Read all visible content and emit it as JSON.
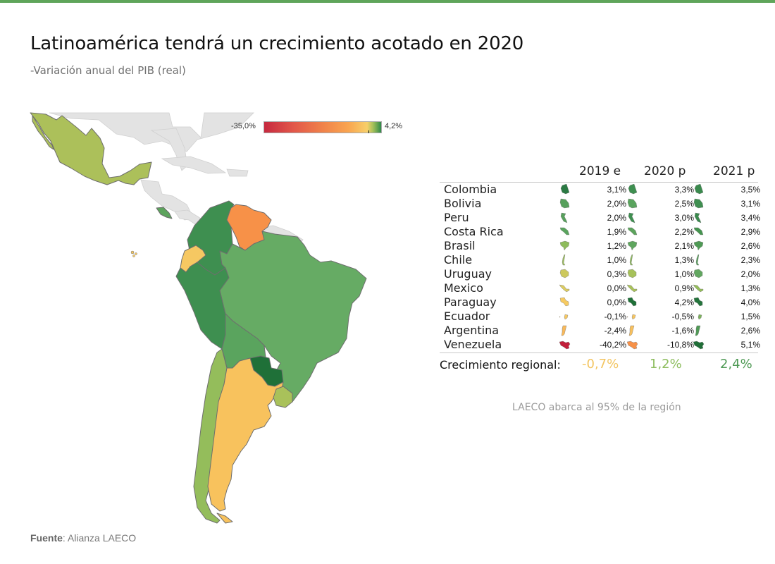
{
  "header": {
    "title": "Latinoamérica tendrá un crecimiento acotado en 2020",
    "subtitle": "-Variación anual del PIB (real)"
  },
  "legend": {
    "min_label": "-35,0%",
    "max_label": "4,2%"
  },
  "table": {
    "columns": [
      "2019 e",
      "2020 p",
      "2021 p"
    ],
    "rows": [
      {
        "country": "Colombia",
        "values": [
          "3,1%",
          "3,3%",
          "3,5%"
        ],
        "colors": [
          "#2b7a43",
          "#3e8f50",
          "#3a8a4d"
        ]
      },
      {
        "country": "Bolivia",
        "values": [
          "2,0%",
          "2,5%",
          "3,1%"
        ],
        "colors": [
          "#57a05c",
          "#5aa45e",
          "#3f8f51"
        ]
      },
      {
        "country": "Peru",
        "values": [
          "2,0%",
          "3,0%",
          "3,4%"
        ],
        "colors": [
          "#57a05c",
          "#3e8f50",
          "#3a8a4d"
        ]
      },
      {
        "country": "Costa Rica",
        "values": [
          "1,9%",
          "2,2%",
          "2,9%"
        ],
        "colors": [
          "#5aa45e",
          "#5ca35c",
          "#45944f"
        ]
      },
      {
        "country": "Brasil",
        "values": [
          "1,2%",
          "2,1%",
          "2,6%"
        ],
        "colors": [
          "#8ebc5c",
          "#5fa65e",
          "#4f9a55"
        ]
      },
      {
        "country": "Chile",
        "values": [
          "1,0%",
          "1,3%",
          "2,3%"
        ],
        "colors": [
          "#9cc05a",
          "#8ebc5c",
          "#55a05a"
        ]
      },
      {
        "country": "Uruguay",
        "values": [
          "0,3%",
          "1,0%",
          "2,0%"
        ],
        "colors": [
          "#cdc95d",
          "#a6c15a",
          "#61a660"
        ]
      },
      {
        "country": "Mexico",
        "values": [
          "0,0%",
          "0,9%",
          "1,3%"
        ],
        "colors": [
          "#dccc62",
          "#a9c15a",
          "#94bd5b"
        ]
      },
      {
        "country": "Paraguay",
        "values": [
          "0,0%",
          "4,2%",
          "4,0%"
        ],
        "colors": [
          "#f6ca61",
          "#1f7038",
          "#24743c"
        ]
      },
      {
        "country": "Ecuador",
        "values": [
          "-0,1%",
          "-0,5%",
          "1,5%"
        ],
        "colors": [
          "#f6c862",
          "#f6c560",
          "#7cb25c"
        ]
      },
      {
        "country": "Argentina",
        "values": [
          "-2,4%",
          "-1,6%",
          "2,6%"
        ],
        "colors": [
          "#f9b95a",
          "#f8c05d",
          "#4f9a55"
        ]
      },
      {
        "country": "Venezuela",
        "values": [
          "-40,2%",
          "-10,8%",
          "5,1%"
        ],
        "colors": [
          "#c21f3a",
          "#f79148",
          "#1f6e37"
        ]
      }
    ]
  },
  "regional": {
    "label": "Crecimiento regional:",
    "values": [
      "-0,7%",
      "1,2%",
      "2,4%"
    ],
    "colors": [
      "#f3c562",
      "#8dbd5e",
      "#4f9a55"
    ]
  },
  "note": "LAECO abarca al 95% de la región",
  "source": {
    "label": "Fuente",
    "text": ": Alianza LAECO"
  },
  "map": {
    "countries": [
      {
        "name": "Mexico",
        "color": "#acc05a"
      },
      {
        "name": "Costa Rica",
        "color": "#5ca35c"
      },
      {
        "name": "Colombia",
        "color": "#3e8f50"
      },
      {
        "name": "Venezuela",
        "color": "#f79148"
      },
      {
        "name": "Ecuador",
        "color": "#f6c862"
      },
      {
        "name": "Peru",
        "color": "#3e8f50"
      },
      {
        "name": "Brasil",
        "color": "#66ab64"
      },
      {
        "name": "Bolivia",
        "color": "#5aa45e"
      },
      {
        "name": "Paraguay",
        "color": "#1f7038"
      },
      {
        "name": "Chile",
        "color": "#94bd5b"
      },
      {
        "name": "Argentina",
        "color": "#f8c25d"
      },
      {
        "name": "Uruguay",
        "color": "#a9c15a"
      }
    ],
    "other_land_color": "#e3e3e3"
  },
  "chart_data": {
    "type": "table",
    "title": "Latinoamérica tendrá un crecimiento acotado en 2020",
    "subtitle": "-Variación anual del PIB (real)",
    "color_scale": {
      "min": -35.0,
      "max": 4.2,
      "palette": "red-orange-yellow-green"
    },
    "categories": [
      "Colombia",
      "Bolivia",
      "Peru",
      "Costa Rica",
      "Brasil",
      "Chile",
      "Uruguay",
      "Mexico",
      "Paraguay",
      "Ecuador",
      "Argentina",
      "Venezuela"
    ],
    "series": [
      {
        "name": "2019 e",
        "values": [
          3.1,
          2.0,
          2.0,
          1.9,
          1.2,
          1.0,
          0.3,
          0.0,
          0.0,
          -0.1,
          -2.4,
          -40.2
        ]
      },
      {
        "name": "2020 p",
        "values": [
          3.3,
          2.5,
          3.0,
          2.2,
          2.1,
          1.3,
          1.0,
          0.9,
          4.2,
          -0.5,
          -1.6,
          -10.8
        ]
      },
      {
        "name": "2021 p",
        "values": [
          3.5,
          3.1,
          3.4,
          2.9,
          2.6,
          2.3,
          2.0,
          1.3,
          4.0,
          1.5,
          2.6,
          5.1
        ]
      }
    ],
    "regional_growth": {
      "2019 e": -0.7,
      "2020 p": 1.2,
      "2021 p": 2.4
    },
    "map_variable": "2020 p",
    "annotations": [
      "LAECO abarca al 95% de la región",
      "Fuente: Alianza LAECO"
    ]
  }
}
